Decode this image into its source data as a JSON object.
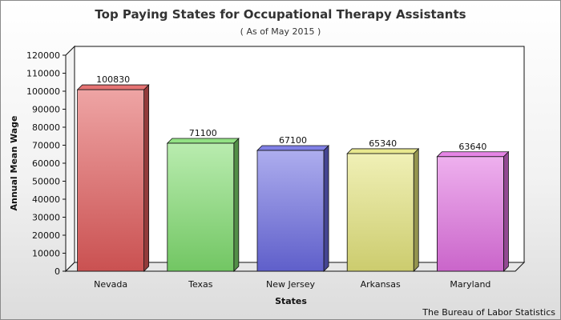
{
  "chart_data": {
    "type": "bar",
    "title": "Top Paying States for Occupational Therapy Assistants",
    "subtitle": "( As of May 2015 )",
    "xlabel": "States",
    "ylabel": "Annual Mean Wage",
    "categories": [
      "Nevada",
      "Texas",
      "New Jersey",
      "Arkansas",
      "Maryland"
    ],
    "values": [
      100830,
      71100,
      67100,
      65340,
      63640
    ],
    "ylim": [
      0,
      120000
    ],
    "y_ticks": [
      0,
      10000,
      20000,
      30000,
      40000,
      50000,
      60000,
      70000,
      80000,
      90000,
      100000,
      110000,
      120000
    ],
    "colors": [
      "#e05a5a",
      "#7fdc6e",
      "#6a6ae0",
      "#e3e37a",
      "#e070e0"
    ],
    "grid": false,
    "legend": "none",
    "source": "The Bureau of Labor Statistics"
  }
}
